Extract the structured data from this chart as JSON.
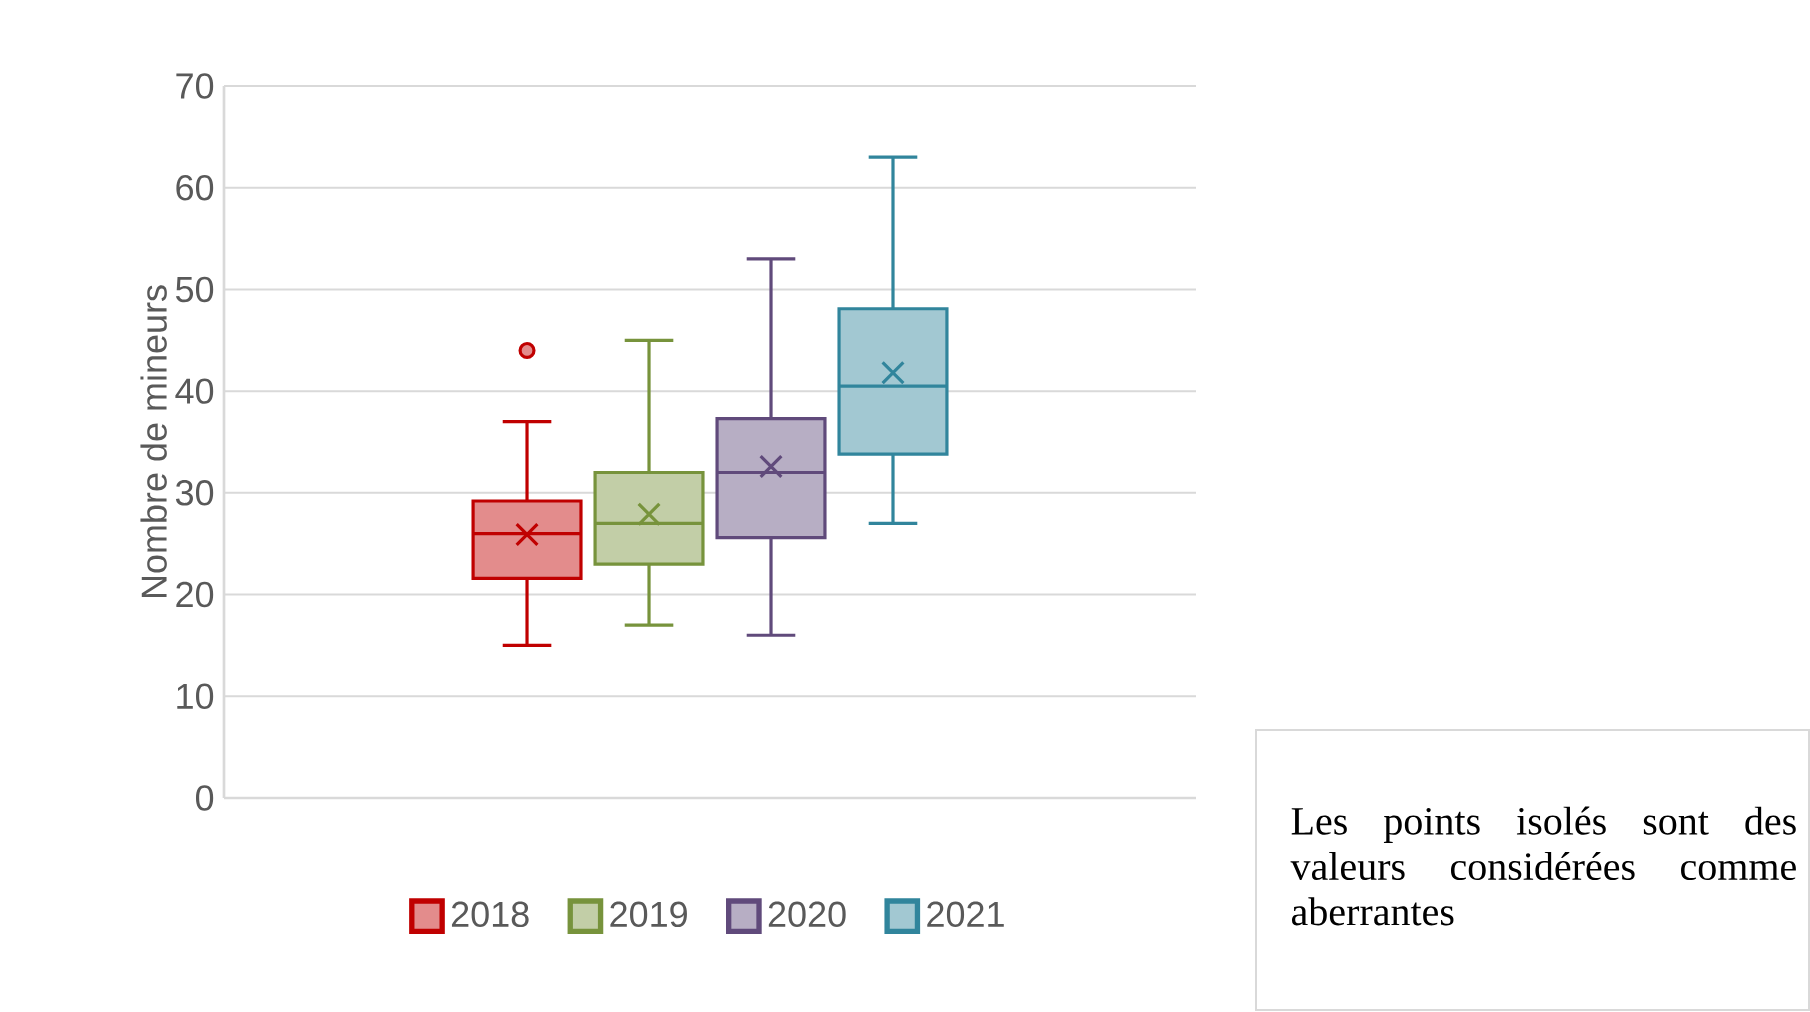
{
  "chart_data": {
    "type": "box",
    "ylabel": "Nombre de mineurs",
    "categories": [
      null
    ],
    "series": [
      {
        "name": "2018",
        "color": "#c00000",
        "boxes": [
          {
            "low": 15,
            "q1": 21.6,
            "median": 26,
            "q3": 29.2,
            "high": 37,
            "mean": 25.9,
            "outliers": [
              44
            ]
          }
        ]
      },
      {
        "name": "2019",
        "color": "#77933c",
        "boxes": [
          {
            "low": 17,
            "q1": 23,
            "median": 27,
            "q3": 32,
            "high": 45,
            "mean": 27.9
          }
        ]
      },
      {
        "name": "2020",
        "color": "#604a7b",
        "boxes": [
          {
            "low": 16,
            "q1": 25.6,
            "median": 32,
            "q3": 37.3,
            "high": 53,
            "mean": 32.6
          }
        ]
      },
      {
        "name": "2021",
        "color": "#31859c",
        "boxes": [
          {
            "low": 27,
            "q1": 33.8,
            "median": 40.5,
            "q3": 48.1,
            "high": 63,
            "mean": 41.8
          }
        ]
      }
    ],
    "ylim": [
      0,
      70
    ],
    "yticks": [
      0,
      10,
      20,
      30,
      40,
      50,
      60,
      70
    ],
    "grid": "y",
    "legend": "bottom",
    "annotations": [
      "Les points isolés sont des valeurs considérées comme aberrantes"
    ]
  }
}
